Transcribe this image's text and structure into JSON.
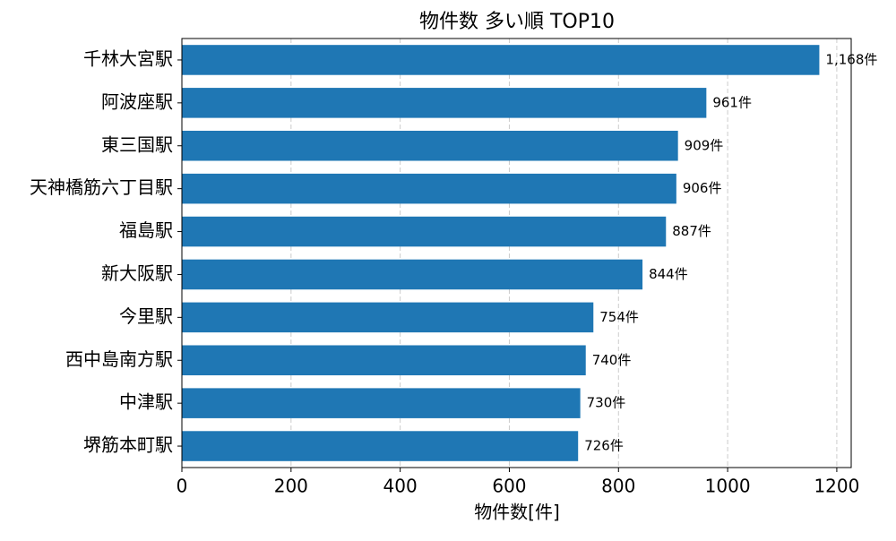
{
  "chart_data": {
    "type": "barh",
    "title": "物件数 多い順 TOP10",
    "xlabel": "物件数[件]",
    "categories": [
      "千林大宮駅",
      "阿波座駅",
      "東三国駅",
      "天神橋筋六丁目駅",
      "福島駅",
      "新大阪駅",
      "今里駅",
      "西中島南方駅",
      "中津駅",
      "堺筋本町駅"
    ],
    "values": [
      1168,
      961,
      909,
      906,
      887,
      844,
      754,
      740,
      730,
      726
    ],
    "value_labels": [
      "1,168件",
      "961件",
      "909件",
      "906件",
      "887件",
      "844件",
      "754件",
      "740件",
      "730件",
      "726件"
    ],
    "color": "#1f77b4",
    "xlim": [
      0,
      1226.4
    ],
    "xticks": [
      0,
      200,
      400,
      600,
      800,
      1000,
      1200
    ],
    "grid": true
  }
}
